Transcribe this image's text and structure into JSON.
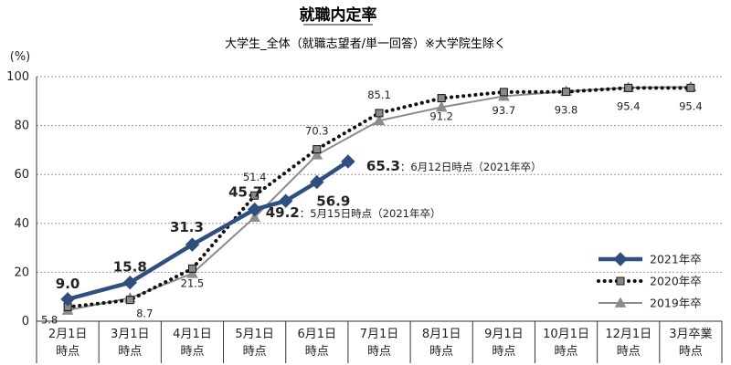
{
  "chart_data": {
    "type": "line",
    "title": "就職内定率",
    "subtitle": "大学生_全体（就職志望者/単一回答）※大学院生除く",
    "ylabel": "(%)",
    "ylim": [
      0,
      100
    ],
    "yticks": [
      0,
      20,
      40,
      60,
      80,
      100
    ],
    "grid": true,
    "legend_position": "bottom-right",
    "categories": [
      [
        "2月1日",
        "時点"
      ],
      [
        "3月1日",
        "時点"
      ],
      [
        "4月1日",
        "時点"
      ],
      [
        "5月1日",
        "時点"
      ],
      [
        "6月1日",
        "時点"
      ],
      [
        "7月1日",
        "時点"
      ],
      [
        "8月1日",
        "時点"
      ],
      [
        "9月1日",
        "時点"
      ],
      [
        "10月1日",
        "時点"
      ],
      [
        "12月1日",
        "時点"
      ],
      [
        "3月卒業",
        "時点"
      ]
    ],
    "series": [
      {
        "name": "2021年卒",
        "color": "#2f4f7f",
        "marker": "diamond",
        "style": "solid",
        "points": [
          {
            "x": 0,
            "y": 9.0
          },
          {
            "x": 1,
            "y": 15.8
          },
          {
            "x": 2,
            "y": 31.3
          },
          {
            "x": 3,
            "y": 45.7
          },
          {
            "x": 3.5,
            "y": 49.2
          },
          {
            "x": 4,
            "y": 56.9
          },
          {
            "x": 4.5,
            "y": 65.3
          }
        ]
      },
      {
        "name": "2020年卒",
        "color": "#111111",
        "marker": "square",
        "style": "dotted",
        "points": [
          {
            "x": 0,
            "y": 5.8
          },
          {
            "x": 1,
            "y": 8.7
          },
          {
            "x": 2,
            "y": 21.5
          },
          {
            "x": 3,
            "y": 51.4
          },
          {
            "x": 4,
            "y": 70.3
          },
          {
            "x": 5,
            "y": 85.1
          },
          {
            "x": 6,
            "y": 91.2
          },
          {
            "x": 7,
            "y": 93.7
          },
          {
            "x": 8,
            "y": 93.8
          },
          {
            "x": 9,
            "y": 95.4
          },
          {
            "x": 10,
            "y": 95.4
          }
        ]
      },
      {
        "name": "2019年卒",
        "color": "#8c8c8c",
        "marker": "triangle",
        "style": "solid",
        "points": [
          {
            "x": 0,
            "y": 4.5
          },
          {
            "x": 1,
            "y": 9.5
          },
          {
            "x": 2,
            "y": 19.5
          },
          {
            "x": 3,
            "y": 42.5
          },
          {
            "x": 4,
            "y": 68.0
          },
          {
            "x": 5,
            "y": 82.0
          },
          {
            "x": 6,
            "y": 87.5
          },
          {
            "x": 7,
            "y": 92.0
          },
          {
            "x": 8,
            "y": 94.0
          },
          {
            "x": 9,
            "y": 95.5
          },
          {
            "x": 10,
            "y": 95.8
          }
        ]
      }
    ],
    "data_labels": [
      {
        "series": 0,
        "point": 0,
        "text": "9.0",
        "size": "big"
      },
      {
        "series": 0,
        "point": 1,
        "text": "15.8",
        "size": "big"
      },
      {
        "series": 0,
        "point": 2,
        "text": "31.3",
        "size": "big"
      },
      {
        "series": 0,
        "point": 3,
        "text": "45.7",
        "size": "big"
      },
      {
        "series": 0,
        "point": 4,
        "text": "49.2",
        "size": "big",
        "note": "：5月15日時点（2021年卒）"
      },
      {
        "series": 0,
        "point": 5,
        "text": "56.9",
        "size": "big"
      },
      {
        "series": 0,
        "point": 6,
        "text": "65.3",
        "size": "big",
        "note": "：6月12日時点（2021年卒）"
      },
      {
        "series": 1,
        "point": 0,
        "text": "5.8",
        "size": "small"
      },
      {
        "series": 1,
        "point": 1,
        "text": "8.7",
        "size": "small"
      },
      {
        "series": 1,
        "point": 2,
        "text": "21.5",
        "size": "small"
      },
      {
        "series": 1,
        "point": 3,
        "text": "51.4",
        "size": "small"
      },
      {
        "series": 1,
        "point": 4,
        "text": "70.3",
        "size": "small"
      },
      {
        "series": 1,
        "point": 5,
        "text": "85.1",
        "size": "small"
      },
      {
        "series": 1,
        "point": 6,
        "text": "91.2",
        "size": "small"
      },
      {
        "series": 1,
        "point": 7,
        "text": "93.7",
        "size": "small"
      },
      {
        "series": 1,
        "point": 8,
        "text": "93.8",
        "size": "small"
      },
      {
        "series": 1,
        "point": 9,
        "text": "95.4",
        "size": "small"
      },
      {
        "series": 1,
        "point": 10,
        "text": "95.4",
        "size": "small"
      }
    ]
  }
}
